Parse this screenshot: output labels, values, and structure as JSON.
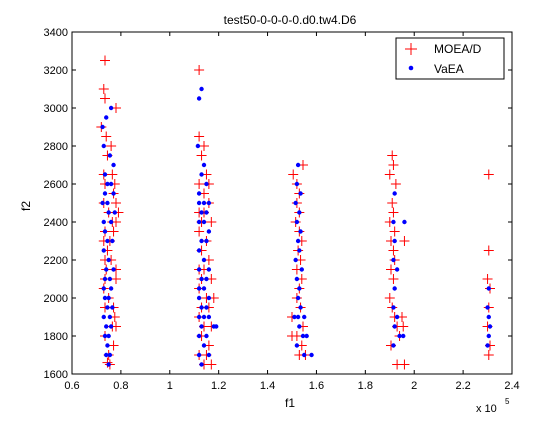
{
  "chart_data": {
    "type": "scatter",
    "title": "test50-0-0-0-0.d0.tw4.D6",
    "xlabel": "f1",
    "ylabel": "f2",
    "x_multiplier_label": "x 10",
    "x_multiplier_exponent": "5",
    "xlim": [
      0.6,
      2.4
    ],
    "ylim": [
      1600,
      3400
    ],
    "xticks": [
      0.6,
      0.8,
      1,
      1.2,
      1.4,
      1.6,
      1.8,
      2,
      2.2,
      2.4
    ],
    "xtick_labels": [
      "0.6",
      "0.8",
      "1",
      "1.2",
      "1.4",
      "1.6",
      "1.8",
      "2",
      "2.2",
      "2.4"
    ],
    "yticks": [
      1600,
      1800,
      2000,
      2200,
      2400,
      2600,
      2800,
      3000,
      3200,
      3400
    ],
    "ytick_labels": [
      "1600",
      "1800",
      "2000",
      "2200",
      "2400",
      "2600",
      "2800",
      "3000",
      "3200",
      "3400"
    ],
    "grid": false,
    "legend_position": "top-right",
    "series": [
      {
        "name": "MOEA/D",
        "marker": "plus",
        "color": "#ff0000",
        "points": [
          [
            0.735,
            3250
          ],
          [
            0.73,
            3100
          ],
          [
            0.735,
            3050
          ],
          [
            0.72,
            2900
          ],
          [
            0.74,
            2850
          ],
          [
            0.76,
            2800
          ],
          [
            0.73,
            2650
          ],
          [
            0.765,
            2650
          ],
          [
            0.735,
            2600
          ],
          [
            0.77,
            2550
          ],
          [
            0.73,
            2500
          ],
          [
            0.78,
            2500
          ],
          [
            0.75,
            2450
          ],
          [
            0.78,
            2400
          ],
          [
            0.735,
            2350
          ],
          [
            0.77,
            2350
          ],
          [
            0.73,
            2300
          ],
          [
            0.745,
            2250
          ],
          [
            0.735,
            2200
          ],
          [
            0.76,
            2200
          ],
          [
            0.78,
            2150
          ],
          [
            0.735,
            2100
          ],
          [
            0.78,
            2100
          ],
          [
            0.73,
            2050
          ],
          [
            0.75,
            2000
          ],
          [
            0.735,
            1950
          ],
          [
            0.77,
            1950
          ],
          [
            0.775,
            1900
          ],
          [
            0.78,
            1850
          ],
          [
            0.735,
            1800
          ],
          [
            0.77,
            1750
          ],
          [
            0.75,
            1700
          ],
          [
            0.755,
            1650
          ],
          [
            0.78,
            3000
          ],
          [
            0.745,
            2750
          ],
          [
            0.775,
            2600
          ],
          [
            0.79,
            2450
          ],
          [
            0.765,
            2400
          ],
          [
            0.755,
            2300
          ],
          [
            0.74,
            2150
          ],
          [
            0.765,
            1850
          ],
          [
            0.745,
            1660
          ],
          [
            1.12,
            3200
          ],
          [
            1.12,
            2850
          ],
          [
            1.14,
            2800
          ],
          [
            1.13,
            2750
          ],
          [
            1.15,
            2650
          ],
          [
            1.12,
            2600
          ],
          [
            1.16,
            2600
          ],
          [
            1.14,
            2550
          ],
          [
            1.16,
            2500
          ],
          [
            1.12,
            2450
          ],
          [
            1.14,
            2450
          ],
          [
            1.13,
            2400
          ],
          [
            1.17,
            2400
          ],
          [
            1.12,
            2350
          ],
          [
            1.15,
            2300
          ],
          [
            1.13,
            2250
          ],
          [
            1.16,
            2200
          ],
          [
            1.12,
            2150
          ],
          [
            1.14,
            2150
          ],
          [
            1.13,
            2100
          ],
          [
            1.17,
            2100
          ],
          [
            1.12,
            2050
          ],
          [
            1.15,
            2000
          ],
          [
            1.13,
            1950
          ],
          [
            1.16,
            1950
          ],
          [
            1.12,
            1900
          ],
          [
            1.14,
            1850
          ],
          [
            1.17,
            1850
          ],
          [
            1.13,
            1800
          ],
          [
            1.16,
            1750
          ],
          [
            1.12,
            1700
          ],
          [
            1.14,
            1650
          ],
          [
            1.17,
            1650
          ],
          [
            1.15,
            1700
          ],
          [
            1.18,
            2000
          ],
          [
            1.505,
            2650
          ],
          [
            1.52,
            2600
          ],
          [
            1.53,
            2550
          ],
          [
            1.52,
            2500
          ],
          [
            1.545,
            2700
          ],
          [
            1.53,
            2450
          ],
          [
            1.515,
            2400
          ],
          [
            1.53,
            2350
          ],
          [
            1.54,
            2300
          ],
          [
            1.525,
            2250
          ],
          [
            1.535,
            2200
          ],
          [
            1.52,
            2150
          ],
          [
            1.54,
            2100
          ],
          [
            1.53,
            2050
          ],
          [
            1.52,
            2000
          ],
          [
            1.535,
            1950
          ],
          [
            1.5,
            1900
          ],
          [
            1.545,
            1850
          ],
          [
            1.52,
            1800
          ],
          [
            1.54,
            1750
          ],
          [
            1.53,
            1700
          ],
          [
            1.555,
            1700
          ],
          [
            1.5,
            1800
          ],
          [
            1.91,
            2750
          ],
          [
            1.915,
            2700
          ],
          [
            1.9,
            2650
          ],
          [
            1.925,
            2600
          ],
          [
            1.91,
            2500
          ],
          [
            1.915,
            2450
          ],
          [
            1.9,
            2400
          ],
          [
            1.92,
            2350
          ],
          [
            1.905,
            2300
          ],
          [
            1.96,
            2300
          ],
          [
            1.915,
            2250
          ],
          [
            1.92,
            2200
          ],
          [
            1.905,
            2150
          ],
          [
            1.915,
            2100
          ],
          [
            1.9,
            2000
          ],
          [
            1.91,
            1950
          ],
          [
            1.92,
            1900
          ],
          [
            1.93,
            1850
          ],
          [
            1.95,
            1900
          ],
          [
            1.955,
            1850
          ],
          [
            1.94,
            1800
          ],
          [
            1.905,
            1750
          ],
          [
            1.93,
            1650
          ],
          [
            1.96,
            1650
          ],
          [
            2.305,
            2650
          ],
          [
            2.305,
            2250
          ],
          [
            2.3,
            2100
          ],
          [
            2.31,
            2050
          ],
          [
            2.305,
            1950
          ],
          [
            2.3,
            1850
          ],
          [
            2.31,
            1750
          ],
          [
            2.305,
            1700
          ]
        ]
      },
      {
        "name": "VaEA",
        "marker": "dot",
        "color": "#0000ff",
        "points": [
          [
            0.74,
            2950
          ],
          [
            0.725,
            2900
          ],
          [
            0.73,
            2800
          ],
          [
            0.76,
            3000
          ],
          [
            0.755,
            2750
          ],
          [
            0.77,
            2700
          ],
          [
            0.735,
            2650
          ],
          [
            0.745,
            2600
          ],
          [
            0.76,
            2600
          ],
          [
            0.735,
            2550
          ],
          [
            0.77,
            2550
          ],
          [
            0.725,
            2500
          ],
          [
            0.745,
            2500
          ],
          [
            0.75,
            2450
          ],
          [
            0.775,
            2450
          ],
          [
            0.73,
            2400
          ],
          [
            0.76,
            2400
          ],
          [
            0.735,
            2350
          ],
          [
            0.745,
            2300
          ],
          [
            0.765,
            2300
          ],
          [
            0.73,
            2250
          ],
          [
            0.75,
            2200
          ],
          [
            0.74,
            2150
          ],
          [
            0.77,
            2150
          ],
          [
            0.735,
            2100
          ],
          [
            0.755,
            2100
          ],
          [
            0.73,
            2050
          ],
          [
            0.76,
            2050
          ],
          [
            0.735,
            2000
          ],
          [
            0.75,
            2000
          ],
          [
            0.745,
            1950
          ],
          [
            0.765,
            1950
          ],
          [
            0.73,
            1900
          ],
          [
            0.755,
            1900
          ],
          [
            0.74,
            1850
          ],
          [
            0.76,
            1850
          ],
          [
            0.735,
            1800
          ],
          [
            0.75,
            1800
          ],
          [
            0.745,
            1750
          ],
          [
            0.74,
            1700
          ],
          [
            0.755,
            1700
          ],
          [
            0.75,
            1650
          ],
          [
            1.13,
            3100
          ],
          [
            1.12,
            3050
          ],
          [
            1.115,
            2800
          ],
          [
            1.14,
            2700
          ],
          [
            1.13,
            2650
          ],
          [
            1.15,
            2600
          ],
          [
            1.12,
            2550
          ],
          [
            1.14,
            2500
          ],
          [
            1.12,
            2500
          ],
          [
            1.16,
            2500
          ],
          [
            1.13,
            2450
          ],
          [
            1.15,
            2450
          ],
          [
            1.12,
            2400
          ],
          [
            1.14,
            2400
          ],
          [
            1.16,
            2350
          ],
          [
            1.13,
            2300
          ],
          [
            1.15,
            2300
          ],
          [
            1.12,
            2250
          ],
          [
            1.14,
            2200
          ],
          [
            1.16,
            2150
          ],
          [
            1.12,
            2150
          ],
          [
            1.13,
            2100
          ],
          [
            1.15,
            2100
          ],
          [
            1.12,
            2050
          ],
          [
            1.14,
            2050
          ],
          [
            1.16,
            2000
          ],
          [
            1.12,
            2000
          ],
          [
            1.13,
            1950
          ],
          [
            1.15,
            1950
          ],
          [
            1.12,
            1900
          ],
          [
            1.14,
            1900
          ],
          [
            1.16,
            1900
          ],
          [
            1.18,
            1850
          ],
          [
            1.13,
            1850
          ],
          [
            1.15,
            1800
          ],
          [
            1.12,
            1800
          ],
          [
            1.14,
            1750
          ],
          [
            1.16,
            1700
          ],
          [
            1.12,
            1700
          ],
          [
            1.13,
            1650
          ],
          [
            1.19,
            1850
          ],
          [
            1.525,
            2700
          ],
          [
            1.52,
            2600
          ],
          [
            1.535,
            2550
          ],
          [
            1.515,
            2500
          ],
          [
            1.53,
            2450
          ],
          [
            1.52,
            2400
          ],
          [
            1.535,
            2350
          ],
          [
            1.525,
            2300
          ],
          [
            1.53,
            2250
          ],
          [
            1.515,
            2200
          ],
          [
            1.54,
            2150
          ],
          [
            1.52,
            2100
          ],
          [
            1.53,
            2050
          ],
          [
            1.525,
            2000
          ],
          [
            1.535,
            1950
          ],
          [
            1.51,
            1900
          ],
          [
            1.525,
            1900
          ],
          [
            1.55,
            1900
          ],
          [
            1.53,
            1850
          ],
          [
            1.545,
            1800
          ],
          [
            1.56,
            1800
          ],
          [
            1.52,
            1750
          ],
          [
            1.55,
            1700
          ],
          [
            1.58,
            1700
          ],
          [
            1.92,
            2550
          ],
          [
            1.915,
            2400
          ],
          [
            1.96,
            2400
          ],
          [
            1.92,
            2300
          ],
          [
            1.915,
            2200
          ],
          [
            1.93,
            2150
          ],
          [
            1.92,
            2050
          ],
          [
            1.915,
            1950
          ],
          [
            1.93,
            1900
          ],
          [
            1.92,
            1850
          ],
          [
            1.94,
            1800
          ],
          [
            1.915,
            1750
          ],
          [
            1.955,
            1800
          ],
          [
            2.305,
            2050
          ],
          [
            2.3,
            1950
          ],
          [
            2.305,
            1900
          ],
          [
            2.31,
            1850
          ],
          [
            2.305,
            1800
          ],
          [
            2.3,
            1750
          ]
        ]
      }
    ]
  }
}
